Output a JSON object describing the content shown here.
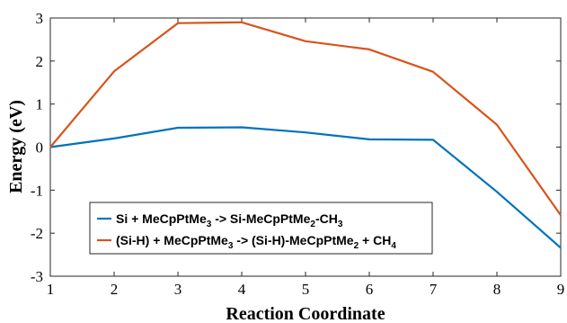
{
  "chart_data": {
    "type": "line",
    "title": "",
    "xlabel": "Reaction Coordinate",
    "ylabel": "Energy (eV)",
    "xlim": [
      1,
      9
    ],
    "ylim": [
      -3,
      3
    ],
    "xticks": [
      1,
      2,
      3,
      4,
      5,
      6,
      7,
      8,
      9
    ],
    "yticks": [
      -3,
      -2,
      -1,
      0,
      1,
      2,
      3
    ],
    "grid": false,
    "legend_position": "bottom-left",
    "x": [
      1,
      2,
      3,
      4,
      5,
      6,
      7,
      8,
      9
    ],
    "series": [
      {
        "name": "Si + MeCpPtMe3 -> Si-MeCpPtMe2-CH3",
        "legend_parts": [
          {
            "t": "Si + MeCpPtMe",
            "sub": false
          },
          {
            "t": "3",
            "sub": true
          },
          {
            "t": " -> Si-MeCpPtMe",
            "sub": false
          },
          {
            "t": "2",
            "sub": true
          },
          {
            "t": "-CH",
            "sub": false
          },
          {
            "t": "3",
            "sub": true
          }
        ],
        "color": "#0072BD",
        "values": [
          0.0,
          0.2,
          0.45,
          0.46,
          0.34,
          0.18,
          0.17,
          -1.04,
          -2.34
        ]
      },
      {
        "name": "(Si-H) + MeCpPtMe3 -> (Si-H)-MeCpPtMe2 + CH4",
        "legend_parts": [
          {
            "t": "(Si-H) + MeCpPtMe",
            "sub": false
          },
          {
            "t": "3",
            "sub": true
          },
          {
            "t": " -> (Si-H)-MeCpPtMe",
            "sub": false
          },
          {
            "t": "2",
            "sub": true
          },
          {
            "t": " + CH",
            "sub": false
          },
          {
            "t": "4",
            "sub": true
          }
        ],
        "color": "#D95319",
        "values": [
          0.0,
          1.76,
          2.88,
          2.9,
          2.46,
          2.27,
          1.75,
          0.52,
          -1.58
        ]
      }
    ]
  }
}
